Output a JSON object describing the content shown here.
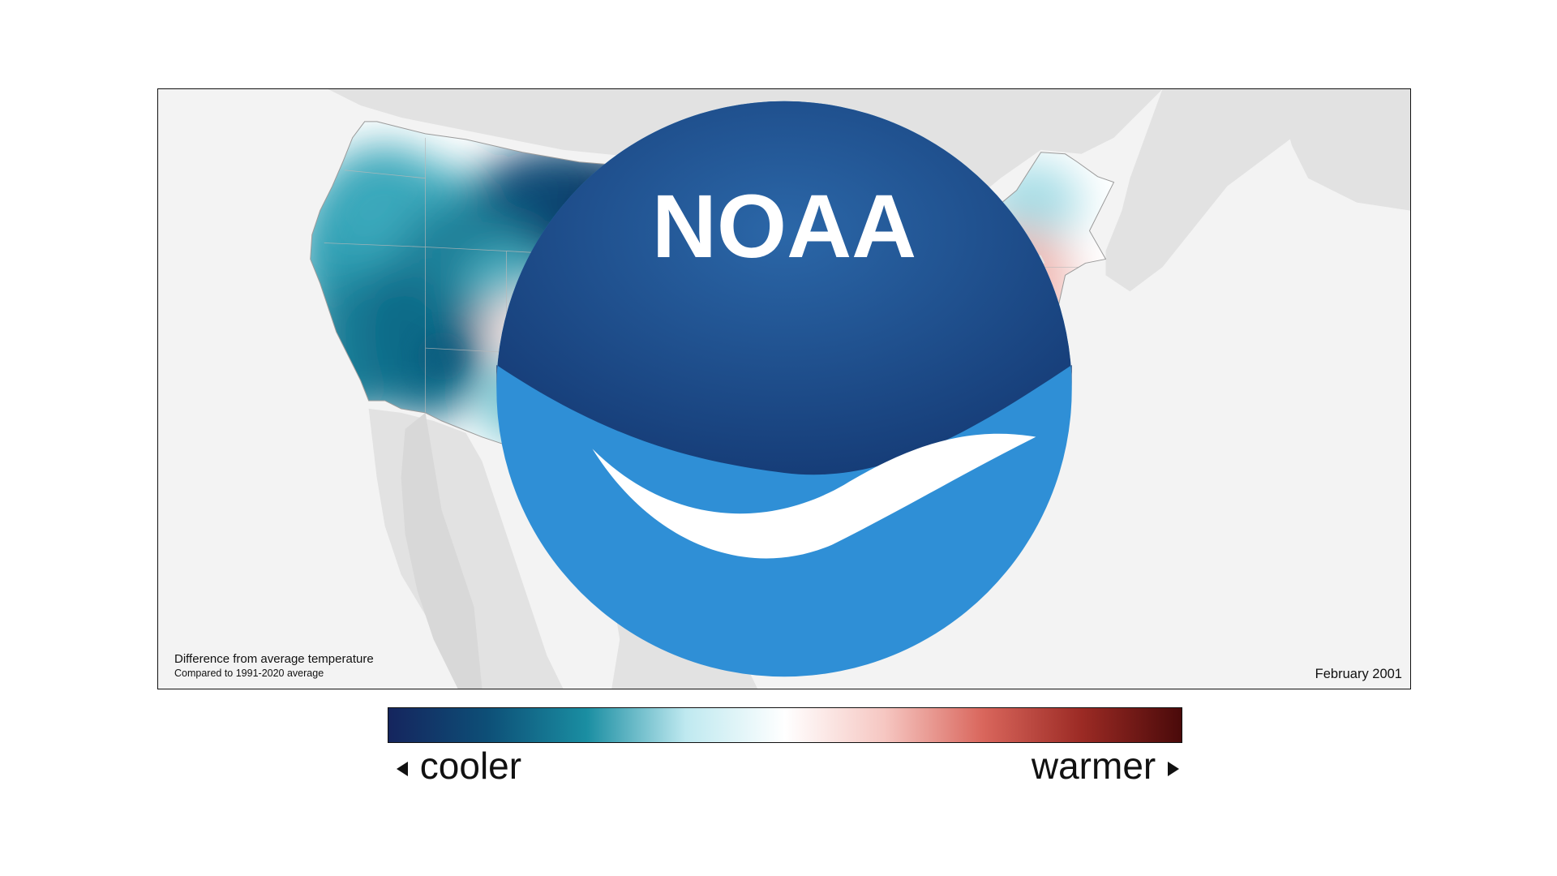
{
  "map": {
    "caption_title": "Difference from average temperature",
    "caption_subtitle": "Compared to 1991-2020 average",
    "period": "February 2001",
    "logo_text": "NOAA"
  },
  "legend": {
    "left_label": "cooler",
    "right_label": "warmer",
    "gradient": [
      "#15255e",
      "#0d4f77",
      "#1a8ea2",
      "#bfe9f0",
      "#ffffff",
      "#f6c7c2",
      "#d9665c",
      "#9b2a24",
      "#4a0a0a"
    ]
  },
  "colors": {
    "cool_strong": "#0a3563",
    "cool_mid": "#0f6380",
    "cool_light": "#6fc3d0",
    "neutral": "#ffffff",
    "warm_light": "#f6c4bf",
    "warm_mid": "#e08a82",
    "warm_strong": "#c94b43",
    "land_bg": "#e2e2e2",
    "ocean_bg": "#f3f3f3",
    "noaa_blue": "#1a4f8f",
    "noaa_light": "#2f8fd6"
  }
}
